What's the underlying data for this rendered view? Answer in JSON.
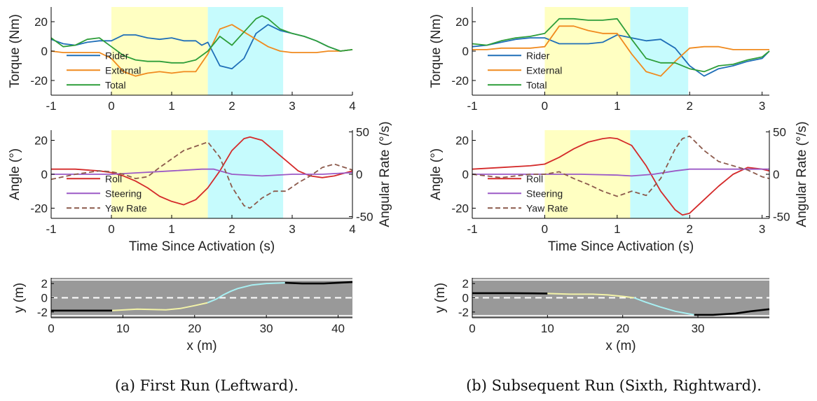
{
  "colors": {
    "rider": "#1f6fb8",
    "external": "#f08a1e",
    "total": "#2e9e3a",
    "roll": "#d42a2a",
    "steering": "#9b59c6",
    "yaw": "#8c5a4c",
    "right_axis_label": "#8c5a4c",
    "phase1": "#ffffc2",
    "phase2": "#c6fbfd",
    "road": "#999999",
    "path_before": "#000000",
    "path_phase1": "#f3f3a8",
    "path_phase2": "#a8f0f3"
  },
  "captions": [
    "(a) First Run (Leftward).",
    "(b) Subsequent Run (Sixth, Rightward)."
  ],
  "chart_data": [
    {
      "type": "line",
      "panel": "a-torque",
      "ylabel": "Torque (Nm)",
      "xlim": [
        -1,
        4
      ],
      "ylim": [
        -30,
        30
      ],
      "xticks": [
        "-1",
        "0",
        "1",
        "2",
        "3",
        "4"
      ],
      "yticks": [
        "20",
        "0",
        "-20"
      ],
      "phases": [
        [
          0,
          1.6
        ],
        [
          1.6,
          2.85
        ]
      ],
      "legend": [
        "Rider",
        "External",
        "Total"
      ],
      "series": [
        {
          "name": "Rider",
          "x": [
            -1,
            -0.8,
            -0.6,
            -0.4,
            -0.2,
            0,
            0.2,
            0.4,
            0.6,
            0.8,
            1.0,
            1.2,
            1.4,
            1.5,
            1.6,
            1.8,
            2.0,
            2.2,
            2.4,
            2.6,
            2.8,
            3.0,
            3.2,
            3.4,
            3.6,
            3.8,
            4.0
          ],
          "y": [
            8,
            5,
            4,
            6,
            7,
            7,
            11,
            11,
            9,
            8,
            9,
            7,
            7,
            4,
            6,
            -10,
            -12,
            -5,
            12,
            18,
            14,
            12,
            10,
            7,
            3,
            0,
            1
          ]
        },
        {
          "name": "External",
          "x": [
            -1,
            -0.8,
            -0.6,
            -0.4,
            -0.2,
            0,
            0.2,
            0.4,
            0.6,
            0.8,
            1.0,
            1.2,
            1.4,
            1.6,
            1.8,
            2.0,
            2.2,
            2.4,
            2.6,
            2.8,
            3.0,
            3.2,
            3.4,
            3.6,
            3.8,
            4.0
          ],
          "y": [
            0,
            -1,
            -1,
            -1,
            -1,
            -5,
            -14,
            -17,
            -15,
            -14,
            -15,
            -14,
            -14,
            -2,
            15,
            18,
            13,
            8,
            3,
            0,
            -1,
            -1,
            -1,
            0,
            0,
            1
          ]
        },
        {
          "name": "Total",
          "x": [
            -1,
            -0.8,
            -0.6,
            -0.4,
            -0.2,
            0,
            0.2,
            0.4,
            0.6,
            0.8,
            1.0,
            1.2,
            1.4,
            1.6,
            1.8,
            2.0,
            2.2,
            2.4,
            2.5,
            2.6,
            2.8,
            3.0,
            3.2,
            3.4,
            3.6,
            3.8,
            4.0
          ],
          "y": [
            9,
            3,
            4,
            8,
            9,
            3,
            -3,
            -6,
            -7,
            -7,
            -8,
            -8,
            -6,
            0,
            10,
            4,
            13,
            22,
            24,
            22,
            15,
            12,
            10,
            7,
            3,
            0,
            1
          ]
        }
      ]
    },
    {
      "type": "line",
      "panel": "a-angle",
      "ylabel": "Angle (°)",
      "y2label": "Angular Rate (°/s)",
      "xlabel": "Time Since Activation (s)",
      "xlim": [
        -1,
        4
      ],
      "ylim": [
        -26,
        26
      ],
      "y2lim": [
        -52,
        52
      ],
      "xticks": [
        "-1",
        "0",
        "1",
        "2",
        "3",
        "4"
      ],
      "yticks": [
        "20",
        "0",
        "-20"
      ],
      "y2ticks": [
        "50",
        "0",
        "-50"
      ],
      "phases": [
        [
          0,
          1.6
        ],
        [
          1.6,
          2.85
        ]
      ],
      "legend": [
        "Roll",
        "Steering",
        "Yaw Rate"
      ],
      "series": [
        {
          "name": "Roll",
          "axis": "left",
          "x": [
            -1,
            -0.6,
            -0.2,
            0,
            0.2,
            0.4,
            0.6,
            0.8,
            1.0,
            1.2,
            1.4,
            1.6,
            1.8,
            2.0,
            2.2,
            2.3,
            2.5,
            2.7,
            2.9,
            3.1,
            3.3,
            3.5,
            3.7,
            4.0
          ],
          "y": [
            3,
            3,
            2,
            1,
            -1,
            -4,
            -8,
            -13,
            -16,
            -18,
            -15,
            -8,
            2,
            14,
            21,
            22,
            20,
            14,
            8,
            2,
            -1,
            -2,
            -1,
            2
          ]
        },
        {
          "name": "Steering",
          "axis": "left",
          "x": [
            -1,
            -0.5,
            0,
            0.5,
            1.0,
            1.5,
            1.7,
            2.0,
            2.5,
            3.0,
            3.5,
            4.0
          ],
          "y": [
            0,
            0,
            0,
            1,
            2,
            3,
            3,
            0,
            -1,
            0,
            0,
            1
          ]
        },
        {
          "name": "Yaw Rate",
          "axis": "right",
          "x": [
            -1,
            -0.6,
            -0.2,
            0,
            0.2,
            0.4,
            0.6,
            0.8,
            1.0,
            1.2,
            1.4,
            1.6,
            1.8,
            2.0,
            2.2,
            2.3,
            2.5,
            2.7,
            2.9,
            3.1,
            3.3,
            3.5,
            3.7,
            4.0
          ],
          "y": [
            -6,
            0,
            4,
            3,
            0,
            -5,
            -3,
            8,
            18,
            28,
            33,
            38,
            20,
            -15,
            -37,
            -40,
            -28,
            -20,
            -20,
            -10,
            -2,
            8,
            12,
            5
          ]
        }
      ]
    },
    {
      "type": "line",
      "panel": "a-path",
      "xlabel": "x (m)",
      "ylabel": "y (m)",
      "xlim": [
        0,
        42
      ],
      "ylim": [
        -2.8,
        2.8
      ],
      "xticks": [
        "0",
        "10",
        "20",
        "30",
        "40"
      ],
      "yticks": [
        "2",
        "0",
        "-2"
      ],
      "series": [
        {
          "name": "",
          "x": [
            0,
            4,
            8.5
          ],
          "y": [
            -1.8,
            -1.8,
            -1.8
          ]
        },
        {
          "name": "",
          "x": [
            8.5,
            12,
            16,
            18,
            20,
            21.8
          ],
          "y": [
            -1.8,
            -1.6,
            -1.7,
            -1.5,
            -1.1,
            -0.7
          ]
        },
        {
          "name": "",
          "x": [
            21.8,
            23,
            24,
            25,
            26,
            28,
            30,
            32.6
          ],
          "y": [
            -0.7,
            -0.2,
            0.4,
            0.9,
            1.3,
            1.8,
            2.0,
            2.1
          ]
        },
        {
          "name": "",
          "x": [
            32.6,
            35,
            38,
            40,
            42
          ],
          "y": [
            2.1,
            2.0,
            2.0,
            2.1,
            2.2
          ]
        }
      ]
    },
    {
      "type": "line",
      "panel": "b-torque",
      "ylabel": "Torque (Nm)",
      "xlim": [
        -1,
        3.1
      ],
      "ylim": [
        -30,
        30
      ],
      "xticks": [
        "-1",
        "0",
        "1",
        "2",
        "3"
      ],
      "yticks": [
        "20",
        "0",
        "-20"
      ],
      "phases": [
        [
          0,
          1.18
        ],
        [
          1.18,
          1.98
        ]
      ],
      "legend": [
        "Rider",
        "External",
        "Total"
      ],
      "series": [
        {
          "name": "Rider",
          "x": [
            -1,
            -0.8,
            -0.6,
            -0.4,
            -0.2,
            0,
            0.2,
            0.4,
            0.6,
            0.8,
            1.0,
            1.2,
            1.4,
            1.6,
            1.8,
            2.0,
            2.2,
            2.4,
            2.6,
            2.8,
            3.0,
            3.1
          ],
          "y": [
            3,
            4,
            6,
            8,
            9,
            9,
            5,
            5,
            5,
            6,
            11,
            9,
            7,
            8,
            2,
            -10,
            -17,
            -12,
            -10,
            -7,
            -5,
            0
          ]
        },
        {
          "name": "External",
          "x": [
            -1,
            -0.8,
            -0.6,
            -0.4,
            -0.2,
            0,
            0.2,
            0.4,
            0.6,
            0.8,
            1.0,
            1.2,
            1.4,
            1.6,
            1.8,
            2.0,
            2.2,
            2.4,
            2.6,
            2.8,
            3.0,
            3.1
          ],
          "y": [
            1,
            1,
            2,
            2,
            2,
            3,
            17,
            17,
            14,
            12,
            12,
            -2,
            -14,
            -17,
            -7,
            2,
            3,
            3,
            1,
            1,
            1,
            1
          ]
        },
        {
          "name": "Total",
          "x": [
            -1,
            -0.8,
            -0.6,
            -0.4,
            -0.2,
            0,
            0.2,
            0.4,
            0.6,
            0.8,
            1.0,
            1.2,
            1.4,
            1.6,
            1.8,
            2.0,
            2.2,
            2.4,
            2.6,
            2.8,
            3.0,
            3.1
          ],
          "y": [
            5,
            4,
            7,
            9,
            10,
            12,
            22,
            22,
            21,
            21,
            22,
            8,
            -5,
            -8,
            -8,
            -12,
            -14,
            -10,
            -9,
            -6,
            -4,
            0
          ]
        }
      ]
    },
    {
      "type": "line",
      "panel": "b-angle",
      "ylabel": "Angle (°)",
      "y2label": "Angular Rate (°/s)",
      "xlabel": "Time Since Activation (s)",
      "xlim": [
        -1,
        3.1
      ],
      "ylim": [
        -26,
        26
      ],
      "y2lim": [
        -52,
        52
      ],
      "xticks": [
        "-1",
        "0",
        "1",
        "2",
        "3"
      ],
      "yticks": [
        "20",
        "0",
        "-20"
      ],
      "y2ticks": [
        "50",
        "0",
        "-50"
      ],
      "phases": [
        [
          0,
          1.18
        ],
        [
          1.18,
          1.98
        ]
      ],
      "legend": [
        "Roll",
        "Steering",
        "Yaw Rate"
      ],
      "series": [
        {
          "name": "Roll",
          "axis": "left",
          "x": [
            -1,
            -0.6,
            -0.2,
            0,
            0.2,
            0.4,
            0.6,
            0.8,
            0.9,
            1.0,
            1.2,
            1.4,
            1.6,
            1.8,
            1.9,
            2.0,
            2.2,
            2.4,
            2.6,
            2.8,
            3.0,
            3.1
          ],
          "y": [
            3,
            4,
            5,
            6,
            10,
            15,
            19,
            21,
            21.5,
            21,
            17,
            5,
            -10,
            -21,
            -24,
            -23,
            -15,
            -7,
            0,
            4,
            3,
            2
          ]
        },
        {
          "name": "Steering",
          "axis": "left",
          "x": [
            -1,
            -0.5,
            0,
            0.5,
            1.0,
            1.2,
            1.5,
            1.8,
            2.0,
            2.5,
            3.0,
            3.1
          ],
          "y": [
            0,
            0,
            0,
            0,
            -0.5,
            -1,
            0,
            2,
            3,
            3,
            3,
            3
          ]
        },
        {
          "name": "Yaw Rate",
          "axis": "right",
          "x": [
            -1,
            -0.8,
            -0.6,
            -0.4,
            -0.2,
            0,
            0.2,
            0.4,
            0.6,
            0.8,
            1.0,
            1.2,
            1.4,
            1.6,
            1.8,
            1.9,
            2.0,
            2.2,
            2.4,
            2.6,
            2.8,
            3.0,
            3.1
          ],
          "y": [
            0,
            -2,
            -4,
            -2,
            0,
            0,
            3,
            -5,
            -12,
            -20,
            -26,
            -20,
            -25,
            -5,
            30,
            42,
            45,
            28,
            15,
            10,
            5,
            -3,
            -5
          ]
        }
      ]
    },
    {
      "type": "line",
      "panel": "b-path",
      "xlabel": "x (m)",
      "ylabel": "y (m)",
      "xlim": [
        0,
        39.5
      ],
      "ylim": [
        -2.8,
        2.8
      ],
      "xticks": [
        "0",
        "10",
        "20",
        "30"
      ],
      "yticks": [
        "2",
        "0",
        "-2"
      ],
      "series": [
        {
          "name": "",
          "x": [
            0,
            5,
            10
          ],
          "y": [
            0.65,
            0.65,
            0.6
          ]
        },
        {
          "name": "",
          "x": [
            10,
            13,
            16,
            18,
            20,
            21.5
          ],
          "y": [
            0.6,
            0.5,
            0.5,
            0.4,
            0.2,
            0.0
          ]
        },
        {
          "name": "",
          "x": [
            21.5,
            23,
            25,
            27,
            29.5
          ],
          "y": [
            0.0,
            -0.6,
            -1.3,
            -1.9,
            -2.4
          ]
        },
        {
          "name": "",
          "x": [
            29.5,
            32,
            35,
            37,
            39.5
          ],
          "y": [
            -2.4,
            -2.4,
            -2.2,
            -1.9,
            -1.6
          ]
        }
      ]
    }
  ]
}
